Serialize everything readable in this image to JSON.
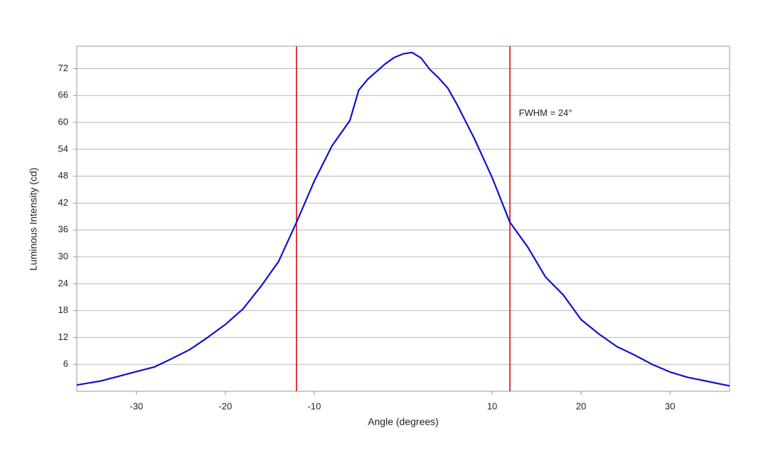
{
  "chart_data": {
    "type": "line",
    "xlabel": "Angle (degrees)",
    "ylabel": "Luminous Intensity (cd)",
    "xlim": [
      -36.7,
      36.7
    ],
    "ylim": [
      0,
      77
    ],
    "xticks": [
      -30,
      -20,
      -10,
      10,
      20,
      30
    ],
    "yticks": [
      6,
      12,
      18,
      24,
      30,
      36,
      42,
      48,
      54,
      60,
      66,
      72
    ],
    "grid": true,
    "x": [
      -36.7,
      -34,
      -30,
      -28,
      -26,
      -24,
      -22,
      -20,
      -18,
      -16,
      -14,
      -12,
      -10,
      -8,
      -6,
      -5,
      -4,
      -2,
      -1,
      0,
      1,
      2,
      3,
      4,
      5,
      6,
      8,
      10,
      12,
      14,
      16,
      18,
      20,
      22,
      24,
      26,
      28,
      30,
      32,
      34,
      36.7
    ],
    "series": [
      {
        "name": "Intensity",
        "color": "#1010d0",
        "values": [
          1.4,
          2.3,
          4.4,
          5.4,
          7.3,
          9.3,
          12,
          14.9,
          18.4,
          23.4,
          29,
          37.7,
          46.9,
          54.8,
          60.4,
          67.2,
          69.6,
          73.1,
          74.5,
          75.3,
          75.6,
          74.4,
          71.8,
          69.9,
          67.7,
          64.2,
          56.4,
          47.7,
          37.7,
          32.2,
          25.5,
          21.5,
          16,
          12.8,
          10,
          8.1,
          6,
          4.3,
          3.1,
          2.3,
          1.2
        ]
      }
    ],
    "vlines": {
      "color": "#d01010",
      "values": [
        -12,
        12
      ]
    },
    "annotation": {
      "text": "FWHM = 24°",
      "x": 13,
      "y": 62
    }
  }
}
